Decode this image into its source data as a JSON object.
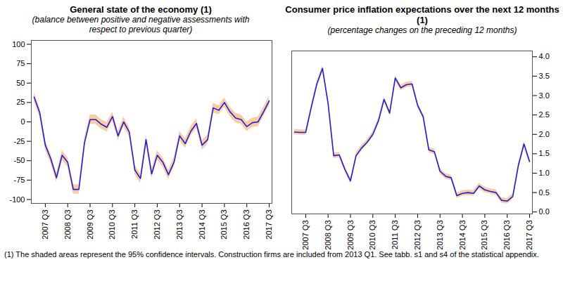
{
  "chart_data": [
    {
      "type": "line",
      "title": "General state of the economy (1)",
      "subtitle": "(balance between positive and negative assessments with respect to previous quarter)",
      "x": [
        null,
        null,
        "2007 Q3",
        null,
        null,
        null,
        "2008 Q3",
        null,
        null,
        null,
        "2009 Q3",
        null,
        null,
        null,
        "2010 Q3",
        null,
        null,
        null,
        "2011 Q3",
        null,
        null,
        null,
        "2012 Q3",
        null,
        null,
        null,
        "2013 Q3",
        null,
        null,
        null,
        "2014 Q3",
        null,
        null,
        null,
        "2015 Q3",
        null,
        null,
        null,
        "2016 Q3",
        null,
        null,
        null,
        "2017 Q3"
      ],
      "series": [
        {
          "color": "#1f1fd6",
          "values": [
            32,
            12,
            -30,
            -48,
            -72,
            -43,
            -52,
            -87,
            -87,
            -27,
            3,
            3,
            -3,
            -7,
            7,
            -18,
            0,
            -13,
            -62,
            -73,
            -23,
            -67,
            -43,
            -52,
            -68,
            -52,
            -18,
            -28,
            -12,
            -2,
            -30,
            -23,
            18,
            15,
            25,
            13,
            5,
            3,
            -6,
            -1,
            0,
            13,
            27
          ],
          "ci_lower": [
            26,
            6,
            -36,
            -54,
            -78,
            -49,
            -58,
            -93,
            -93,
            -33,
            -3,
            -3,
            -9,
            -13,
            1,
            -24,
            -6,
            -19,
            -68,
            -79,
            -29,
            -73,
            -49,
            -58,
            -74,
            -58,
            -24,
            -34,
            -18,
            -8,
            -36,
            -29,
            12,
            9,
            19,
            7,
            -1,
            -3,
            -12,
            -7,
            -6,
            7,
            21
          ],
          "ci_upper": [
            38,
            18,
            -24,
            -42,
            -66,
            -37,
            -46,
            -81,
            -81,
            -21,
            9,
            9,
            3,
            -1,
            13,
            -12,
            6,
            -7,
            -56,
            -67,
            -17,
            -61,
            -37,
            -46,
            -62,
            -46,
            -12,
            -22,
            -6,
            4,
            -24,
            -17,
            24,
            21,
            31,
            19,
            11,
            9,
            0,
            5,
            6,
            19,
            33
          ]
        }
      ],
      "ylim": [
        -105,
        105
      ],
      "yticks": [
        -100,
        -75,
        -50,
        -25,
        0,
        25,
        50,
        75,
        100
      ],
      "grid": false
    },
    {
      "type": "line",
      "title": "Consumer price inflation expectations over the next 12 months (1)",
      "subtitle": "(percentage changes on the preceding 12 months)",
      "x": [
        null,
        null,
        "2007 Q3",
        null,
        null,
        null,
        "2008 Q3",
        null,
        null,
        null,
        "2009 Q3",
        null,
        null,
        null,
        "2010 Q3",
        null,
        null,
        null,
        "2011 Q3",
        null,
        null,
        null,
        "2012 Q3",
        null,
        null,
        null,
        "2013 Q3",
        null,
        null,
        null,
        "2014 Q3",
        null,
        null,
        null,
        "2015 Q3",
        null,
        null,
        null,
        "2016 Q3",
        null,
        null,
        null,
        "2017 Q3"
      ],
      "series": [
        {
          "color": "#1f1fd6",
          "values": [
            2.06,
            2.05,
            2.05,
            2.7,
            3.3,
            3.7,
            2.8,
            1.45,
            1.47,
            1.1,
            0.8,
            1.45,
            1.65,
            1.8,
            2.0,
            2.35,
            2.9,
            2.55,
            3.45,
            3.2,
            3.28,
            3.3,
            2.75,
            2.45,
            1.6,
            1.55,
            1.05,
            0.92,
            0.88,
            0.42,
            0.48,
            0.5,
            0.48,
            0.67,
            0.57,
            0.53,
            0.5,
            0.3,
            0.28,
            0.4,
            1.2,
            1.75,
            1.3
          ],
          "ci_lower": [
            1.99,
            1.98,
            1.98,
            2.63,
            3.23,
            3.63,
            2.73,
            1.38,
            1.4,
            1.03,
            0.73,
            1.38,
            1.58,
            1.73,
            1.93,
            2.28,
            2.83,
            2.48,
            3.38,
            3.13,
            3.21,
            3.23,
            2.68,
            2.38,
            1.53,
            1.48,
            0.98,
            0.85,
            0.81,
            0.35,
            0.41,
            0.43,
            0.41,
            0.6,
            0.5,
            0.46,
            0.43,
            0.23,
            0.21,
            0.33,
            1.13,
            1.68,
            1.23
          ],
          "ci_upper": [
            2.13,
            2.12,
            2.12,
            2.77,
            3.37,
            3.77,
            2.87,
            1.52,
            1.54,
            1.17,
            0.87,
            1.52,
            1.72,
            1.87,
            2.07,
            2.42,
            2.97,
            2.62,
            3.52,
            3.27,
            3.35,
            3.37,
            2.82,
            2.52,
            1.67,
            1.62,
            1.12,
            0.99,
            0.95,
            0.49,
            0.55,
            0.57,
            0.55,
            0.74,
            0.64,
            0.6,
            0.57,
            0.37,
            0.35,
            0.47,
            1.27,
            1.82,
            1.37
          ]
        }
      ],
      "ylim": [
        -0.05,
        4.15
      ],
      "yticks": [
        {
          "value": 0,
          "label": "0.0"
        },
        0.5,
        {
          "value": 1,
          "label": "1.0"
        },
        1.5,
        {
          "value": 2,
          "label": "2.0"
        },
        2.5,
        {
          "value": 3,
          "label": "3.0"
        },
        3.5,
        {
          "value": 4,
          "label": "4.0"
        }
      ],
      "grid": false
    }
  ],
  "note": "(1) The shaded areas represent the 95% confidence intervals. Construction firms are included from 2013 Q1. See tabb. s1 and s4 of the statistical appendix."
}
